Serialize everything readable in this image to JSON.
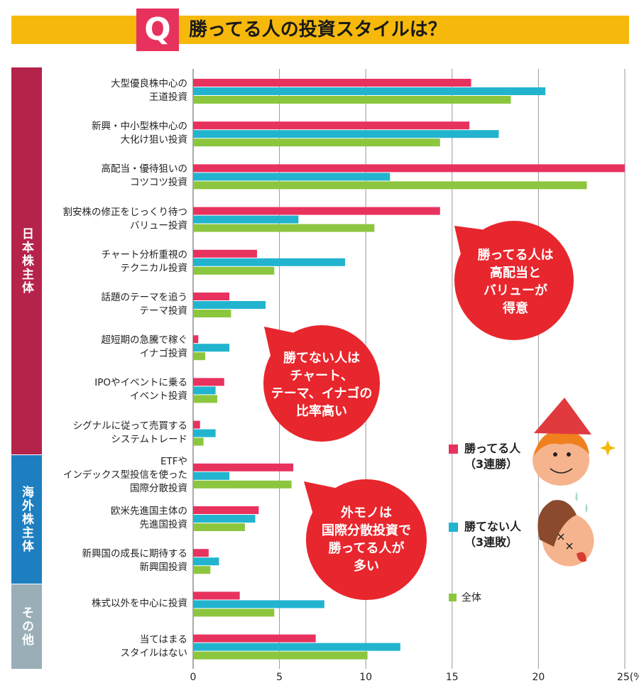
{
  "header": {
    "q_mark": "Q",
    "title": "勝ってる人の投資スタイルは？"
  },
  "colors": {
    "winners": "#e8325e",
    "losers": "#22b4cf",
    "overall": "#8cc63f",
    "header": "#f6b90b",
    "bubble": "#e8262d",
    "group_japan": "#b5224a",
    "group_foreign": "#1e7fc0",
    "group_other": "#9aaeb8"
  },
  "groups": [
    {
      "label": "日本株主体"
    },
    {
      "label": "海外株主体"
    },
    {
      "label": "その他"
    }
  ],
  "bubbles": [
    {
      "text": "勝ってる人は\n高配当と\nバリューが\n得意"
    },
    {
      "text": "勝てない人は\nチャート、\nテーマ、イナゴの\n比率高い"
    },
    {
      "text": "外モノは\n国際分散投資で\n勝ってる人が\n多い"
    }
  ],
  "legend": {
    "winners": "勝ってる人\n（3連勝）",
    "losers": "勝てない人\n（3連敗）",
    "overall": "全体"
  },
  "chart_data": {
    "type": "bar",
    "orientation": "horizontal",
    "unit": "%",
    "xlim": [
      0,
      25
    ],
    "grid": true,
    "ticks": [
      "0",
      "5",
      "10",
      "15",
      "20",
      "25(%)"
    ],
    "categories": [
      "大型優良株中心の\n王道投資",
      "新興・中小型株中心の\n大化け狙い投資",
      "高配当・優待狙いの\nコツコツ投資",
      "割安株の修正をじっくり待つ\nバリュー投資",
      "チャート分析重視の\nテクニカル投資",
      "話題のテーマを追う\nテーマ投資",
      "超短期の急騰で稼ぐ\nイナゴ投資",
      "IPOやイベントに乗る\nイベント投資",
      "シグナルに従って売買する\nシステムトレード",
      "ETFや\nインデックス型投信を使った\n国際分散投資",
      "欧米先進国主体の\n先進国投資",
      "新興国の成長に期待する\n新興国投資",
      "株式以外を中心に投資",
      "当てはまる\nスタイルはない"
    ],
    "series": [
      {
        "name": "勝ってる人（3連勝）",
        "values": [
          16.1,
          16.0,
          25.0,
          14.3,
          3.7,
          2.1,
          0.3,
          1.8,
          0.4,
          5.8,
          3.8,
          0.9,
          2.7,
          7.1
        ]
      },
      {
        "name": "勝てない人（3連敗）",
        "values": [
          20.4,
          17.7,
          11.4,
          6.1,
          8.8,
          4.2,
          2.1,
          1.3,
          1.3,
          2.1,
          3.6,
          1.5,
          7.6,
          12.0
        ]
      },
      {
        "name": "全体",
        "values": [
          18.4,
          14.3,
          22.8,
          10.5,
          4.7,
          2.2,
          0.7,
          1.4,
          0.6,
          5.7,
          3.0,
          1.0,
          4.7,
          10.1
        ]
      }
    ]
  }
}
